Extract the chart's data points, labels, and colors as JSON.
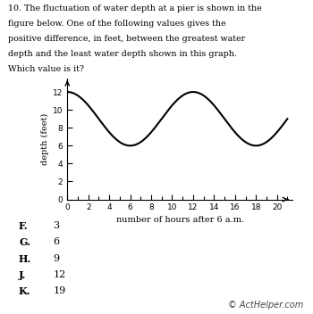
{
  "title_line1": "10. The fluctuation of water depth at a pier is shown in the",
  "title_line2": "figure below. One of the following values gives the",
  "title_line3": "positive difference, in feet, between the greatest water",
  "title_line4": "depth and the least water depth shown in this graph.",
  "title_line5": "Which value is it?",
  "xlabel": "number of hours after 6 a.m.",
  "ylabel": "depth (feet)",
  "xlim": [
    0,
    21.5
  ],
  "ylim": [
    0,
    13.5
  ],
  "xticks": [
    0,
    2,
    4,
    6,
    8,
    10,
    12,
    14,
    16,
    18,
    20
  ],
  "yticks": [
    0,
    2,
    4,
    6,
    8,
    10,
    12
  ],
  "amplitude": 3,
  "midline": 9,
  "period": 12,
  "x_start": 0,
  "x_end": 21.0,
  "line_color": "#000000",
  "line_width": 1.5,
  "choices_letters": [
    "F.",
    "G.",
    "H.",
    "J.",
    "K."
  ],
  "choices_values": [
    "3",
    "6",
    "9",
    "12",
    "19"
  ],
  "watermark": "© ActHelper.com",
  "background_color": "#ffffff",
  "title_fontsize": 6.8,
  "axis_label_fontsize": 7.0,
  "tick_fontsize": 6.5,
  "choices_fontsize": 8.0
}
